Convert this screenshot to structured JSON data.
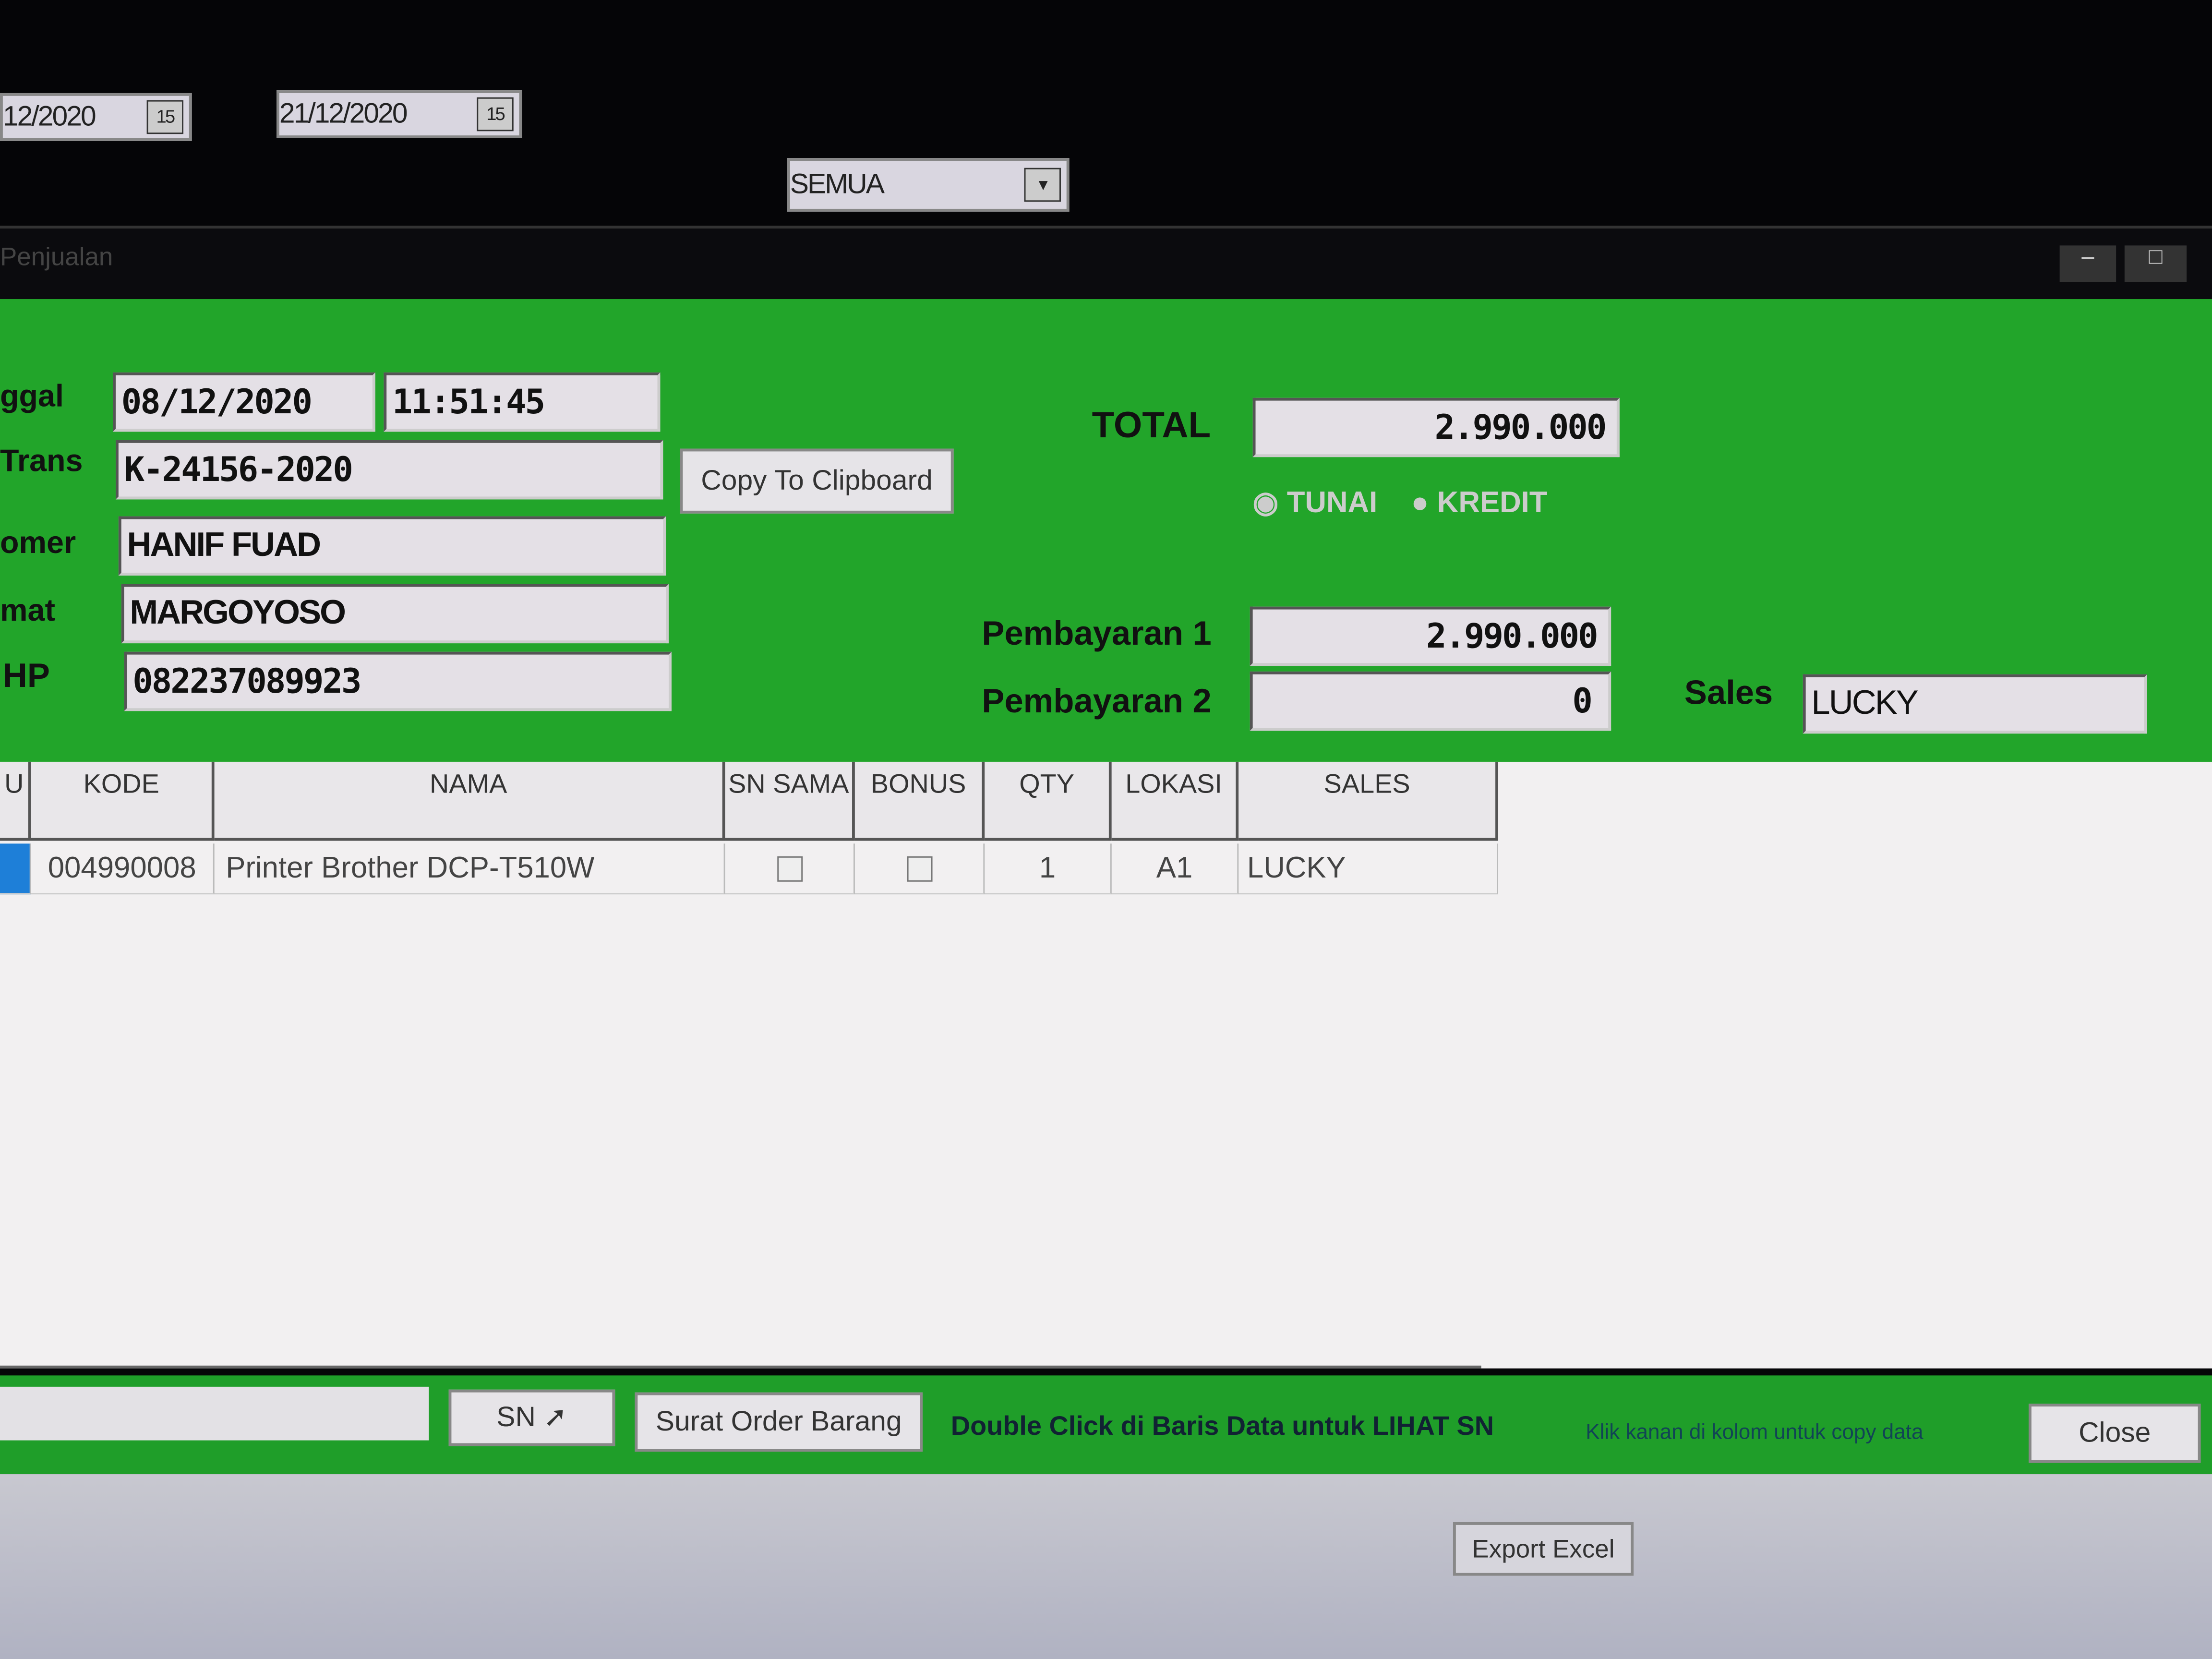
{
  "filter": {
    "date_from": "12/2020",
    "date_to": "21/12/2020",
    "calendar_icon": "calendar-icon",
    "category": "SEMUA"
  },
  "window": {
    "title": "Penjualan"
  },
  "form": {
    "tanggal_label": "ggal",
    "tanggal": "08/12/2020",
    "jam": "11:51:45",
    "trans_label": "Trans",
    "no_trans": "K-24156-2020",
    "customer_label": "omer",
    "customer": "HANIF FUAD",
    "alamat_label": "mat",
    "alamat": "MARGOYOSO",
    "hp_label": "HP",
    "hp": "082237089923",
    "copy_button": "Copy To Clipboard",
    "total_label": "TOTAL",
    "total": "2.990.000",
    "payment_types": [
      {
        "label": "TUNAI",
        "selected": true
      },
      {
        "label": "KREDIT",
        "selected": false
      }
    ],
    "pembayaran1_label": "Pembayaran 1",
    "pembayaran1": "2.990.000",
    "pembayaran2_label": "Pembayaran 2",
    "pembayaran2": "0",
    "sales_label": "Sales",
    "sales": "LUCKY"
  },
  "table": {
    "headers": [
      "U",
      "KODE",
      "NAMA",
      "SN SAMA",
      "BONUS",
      "QTY",
      "LOKASI",
      "SALES"
    ],
    "rows": [
      {
        "kode": "004990008",
        "nama": "Printer Brother DCP-T510W",
        "sn_sama": false,
        "bonus": false,
        "qty": "1",
        "lokasi": "A1",
        "sales": "LUCKY"
      }
    ]
  },
  "footer": {
    "sn_button": "SN",
    "surat_button": "Surat Order Barang",
    "hint": "Double Click di Baris Data untuk LIHAT SN",
    "hint2": "Klik kanan di kolom untuk copy data",
    "close_button": "Close",
    "export_button": "Export Excel"
  },
  "colors": {
    "form_bg": "#22a52a",
    "field_bg": "#e4e0e6"
  }
}
